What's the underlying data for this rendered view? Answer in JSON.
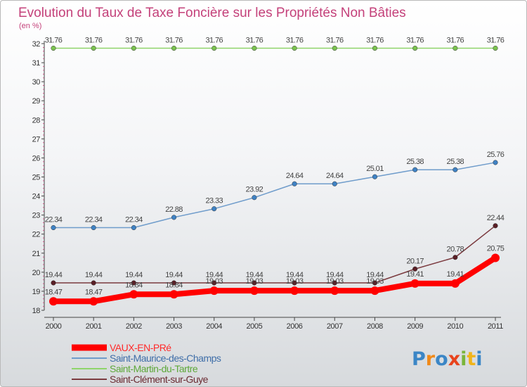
{
  "chart_data": {
    "type": "line",
    "title": "Evolution du Taux de Taxe Foncière sur les Propriétés Non Bâties",
    "ylabel": "(en %)",
    "xlabel": "",
    "ylim": [
      18,
      32
    ],
    "yticks": [
      "18",
      "19",
      "20",
      "21",
      "22",
      "23",
      "24",
      "25",
      "26",
      "27",
      "28",
      "29",
      "30",
      "31",
      "32"
    ],
    "x": [
      "2000",
      "2001",
      "2002",
      "2003",
      "2004",
      "2005",
      "2006",
      "2007",
      "2008",
      "2009",
      "2010",
      "2011"
    ],
    "grid": false,
    "legend_position": "bottom-left",
    "series": [
      {
        "name": "VAUX-EN-PRé",
        "color": "#ff0000",
        "values": [
          18.47,
          18.47,
          18.84,
          18.84,
          19.03,
          19.03,
          19.03,
          19.03,
          19.03,
          19.41,
          19.41,
          20.75
        ],
        "labels": [
          "18.47",
          "18.47",
          "18.84",
          "18.84",
          "19.03",
          "19.03",
          "19.03",
          "19.03",
          "19.03",
          "19.41",
          "19.41",
          "20.75"
        ]
      },
      {
        "name": "Saint-Maurice-des-Champs",
        "color": "#6f9ccb",
        "values": [
          22.34,
          22.34,
          22.34,
          22.88,
          23.33,
          23.92,
          24.64,
          24.64,
          25.01,
          25.38,
          25.38,
          25.76
        ],
        "labels": [
          "22.34",
          "22.34",
          "22.34",
          "22.88",
          "23.33",
          "23.92",
          "24.64",
          "24.64",
          "25.01",
          "25.38",
          "25.38",
          "25.76"
        ]
      },
      {
        "name": "Saint-Martin-du-Tartre",
        "color": "#8fd46a",
        "values": [
          31.76,
          31.76,
          31.76,
          31.76,
          31.76,
          31.76,
          31.76,
          31.76,
          31.76,
          31.76,
          31.76,
          31.76
        ],
        "labels": [
          "31.76",
          "31.76",
          "31.76",
          "31.76",
          "31.76",
          "31.76",
          "31.76",
          "31.76",
          "31.76",
          "31.76",
          "31.76",
          "31.76"
        ]
      },
      {
        "name": "Saint-Clément-sur-Guye",
        "color": "#7b3a3f",
        "values": [
          19.44,
          19.44,
          19.44,
          19.44,
          19.44,
          19.44,
          19.44,
          19.44,
          19.44,
          20.17,
          20.78,
          22.44
        ],
        "labels": [
          "19.44",
          "19.44",
          "19.44",
          "19.44",
          "19.44",
          "19.44",
          "19.44",
          "19.44",
          "19.44",
          "20.17",
          "20.78",
          "22.44"
        ]
      }
    ]
  },
  "logo": {
    "text": "Proxiti"
  }
}
